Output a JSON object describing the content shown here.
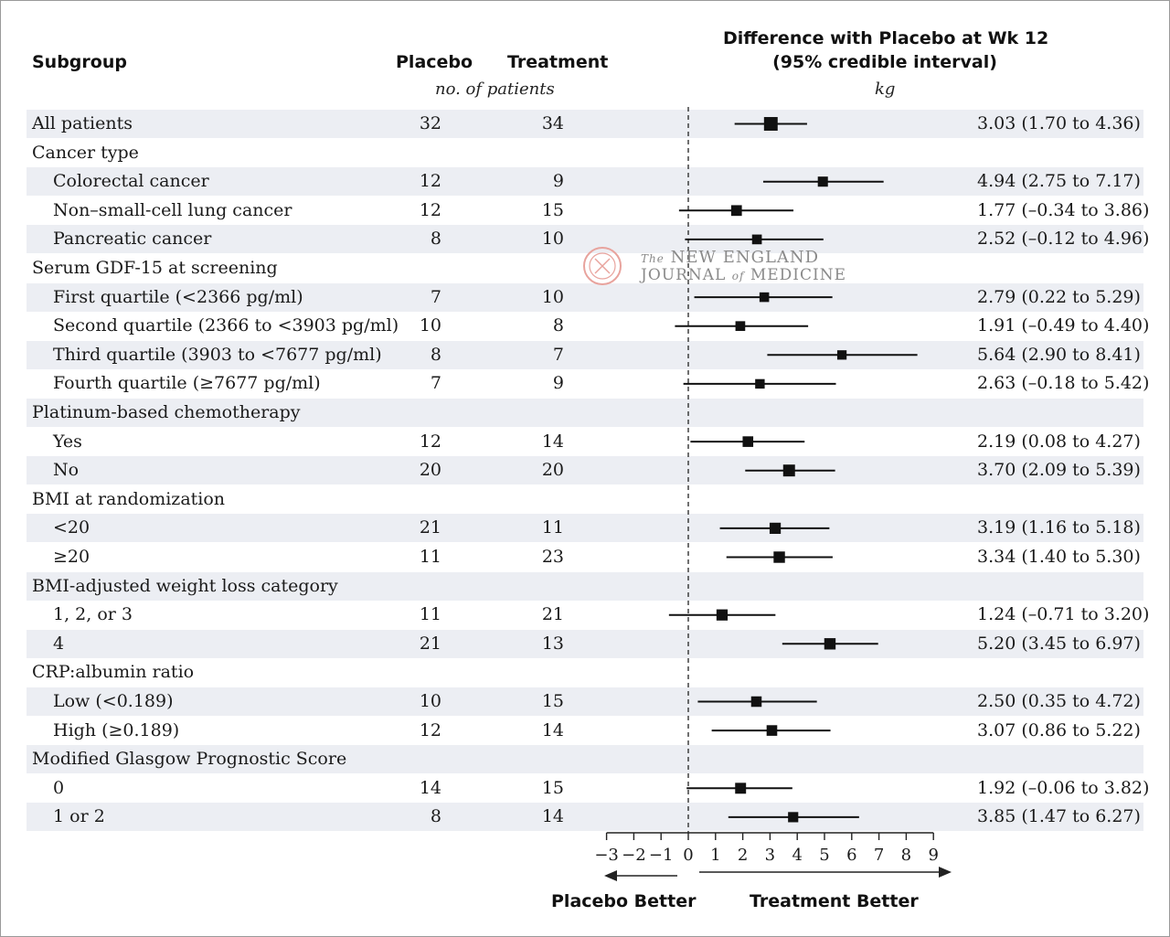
{
  "header": {
    "subgroup": "Subgroup",
    "placebo": "Placebo",
    "treatment": "Treatment",
    "counts_note": "no. of patients",
    "diff_line1": "Difference with Placebo at Wk 12",
    "diff_line2": "(95% credible interval)",
    "unit": "kg"
  },
  "logo": {
    "line1_small": "The",
    "line1": "NEW ENGLAND",
    "line2a": "JOURNAL",
    "line2_small": "of",
    "line2b": "MEDICINE"
  },
  "directions": {
    "left": "Placebo Better",
    "right": "Treatment Better"
  },
  "rows": [
    {
      "label": "All patients",
      "indent": false,
      "placebo": "32",
      "treatment": "34",
      "ci": "3.03 (1.70 to 4.36)"
    },
    {
      "label": "Cancer type",
      "indent": false,
      "placebo": "",
      "treatment": "",
      "ci": ""
    },
    {
      "label": "Colorectal cancer",
      "indent": true,
      "placebo": "12",
      "treatment": "9",
      "ci": "4.94 (2.75 to 7.17)"
    },
    {
      "label": "Non–small-cell lung cancer",
      "indent": true,
      "placebo": "12",
      "treatment": "15",
      "ci": "1.77 (–0.34 to 3.86)"
    },
    {
      "label": "Pancreatic cancer",
      "indent": true,
      "placebo": "8",
      "treatment": "10",
      "ci": "2.52 (–0.12 to 4.96)"
    },
    {
      "label": "Serum GDF-15 at screening",
      "indent": false,
      "placebo": "",
      "treatment": "",
      "ci": ""
    },
    {
      "label": "First quartile (<2366 pg/ml)",
      "indent": true,
      "placebo": "7",
      "treatment": "10",
      "ci": "2.79 (0.22 to 5.29)"
    },
    {
      "label": "Second quartile (2366 to <3903 pg/ml)",
      "indent": true,
      "placebo": "10",
      "treatment": "8",
      "ci": "1.91 (–0.49 to 4.40)"
    },
    {
      "label": "Third quartile (3903 to <7677 pg/ml)",
      "indent": true,
      "placebo": "8",
      "treatment": "7",
      "ci": "5.64 (2.90 to 8.41)"
    },
    {
      "label": "Fourth quartile (≥7677 pg/ml)",
      "indent": true,
      "placebo": "7",
      "treatment": "9",
      "ci": "2.63 (–0.18 to 5.42)"
    },
    {
      "label": "Platinum-based chemotherapy",
      "indent": false,
      "placebo": "",
      "treatment": "",
      "ci": ""
    },
    {
      "label": "Yes",
      "indent": true,
      "placebo": "12",
      "treatment": "14",
      "ci": "2.19 (0.08 to 4.27)"
    },
    {
      "label": "No",
      "indent": true,
      "placebo": "20",
      "treatment": "20",
      "ci": "3.70 (2.09 to 5.39)"
    },
    {
      "label": "BMI at randomization",
      "indent": false,
      "placebo": "",
      "treatment": "",
      "ci": ""
    },
    {
      "label": "<20",
      "indent": true,
      "placebo": "21",
      "treatment": "11",
      "ci": "3.19 (1.16 to 5.18)"
    },
    {
      "label": "≥20",
      "indent": true,
      "placebo": "11",
      "treatment": "23",
      "ci": "3.34 (1.40 to 5.30)"
    },
    {
      "label": "BMI-adjusted weight loss category",
      "indent": false,
      "placebo": "",
      "treatment": "",
      "ci": ""
    },
    {
      "label": "1, 2, or 3",
      "indent": true,
      "placebo": "11",
      "treatment": "21",
      "ci": "1.24 (–0.71 to 3.20)"
    },
    {
      "label": "4",
      "indent": true,
      "placebo": "21",
      "treatment": "13",
      "ci": "5.20 (3.45 to 6.97)"
    },
    {
      "label": "CRP:albumin ratio",
      "indent": false,
      "placebo": "",
      "treatment": "",
      "ci": ""
    },
    {
      "label": "Low (<0.189)",
      "indent": true,
      "placebo": "10",
      "treatment": "15",
      "ci": "2.50 (0.35 to 4.72)"
    },
    {
      "label": "High (≥0.189)",
      "indent": true,
      "placebo": "12",
      "treatment": "14",
      "ci": "3.07 (0.86 to 5.22)"
    },
    {
      "label": "Modified Glasgow Prognostic Score",
      "indent": false,
      "placebo": "",
      "treatment": "",
      "ci": ""
    },
    {
      "label": "0",
      "indent": true,
      "placebo": "14",
      "treatment": "15",
      "ci": "1.92 (–0.06 to 3.82)"
    },
    {
      "label": "1 or 2",
      "indent": true,
      "placebo": "8",
      "treatment": "14",
      "ci": "3.85 (1.47 to 6.27)"
    }
  ],
  "chart_data": {
    "type": "forest",
    "xlim": [
      -3,
      9
    ],
    "xticks": [
      "−3",
      "−2",
      "−1",
      "0",
      "1",
      "2",
      "3",
      "4",
      "5",
      "6",
      "7",
      "8",
      "9"
    ],
    "reference_line": 0,
    "points": [
      {
        "row": 0,
        "est": 3.03,
        "lo": 1.7,
        "hi": 4.36,
        "n": 66
      },
      {
        "row": 2,
        "est": 4.94,
        "lo": 2.75,
        "hi": 7.17,
        "n": 21
      },
      {
        "row": 3,
        "est": 1.77,
        "lo": -0.34,
        "hi": 3.86,
        "n": 27
      },
      {
        "row": 4,
        "est": 2.52,
        "lo": -0.12,
        "hi": 4.96,
        "n": 18
      },
      {
        "row": 6,
        "est": 2.79,
        "lo": 0.22,
        "hi": 5.29,
        "n": 17
      },
      {
        "row": 7,
        "est": 1.91,
        "lo": -0.49,
        "hi": 4.4,
        "n": 18
      },
      {
        "row": 8,
        "est": 5.64,
        "lo": 2.9,
        "hi": 8.41,
        "n": 15
      },
      {
        "row": 9,
        "est": 2.63,
        "lo": -0.18,
        "hi": 5.42,
        "n": 16
      },
      {
        "row": 11,
        "est": 2.19,
        "lo": 0.08,
        "hi": 4.27,
        "n": 26
      },
      {
        "row": 12,
        "est": 3.7,
        "lo": 2.09,
        "hi": 5.39,
        "n": 40
      },
      {
        "row": 14,
        "est": 3.19,
        "lo": 1.16,
        "hi": 5.18,
        "n": 32
      },
      {
        "row": 15,
        "est": 3.34,
        "lo": 1.4,
        "hi": 5.3,
        "n": 34
      },
      {
        "row": 17,
        "est": 1.24,
        "lo": -0.71,
        "hi": 3.2,
        "n": 32
      },
      {
        "row": 18,
        "est": 5.2,
        "lo": 3.45,
        "hi": 6.97,
        "n": 34
      },
      {
        "row": 20,
        "est": 2.5,
        "lo": 0.35,
        "hi": 4.72,
        "n": 25
      },
      {
        "row": 21,
        "est": 3.07,
        "lo": 0.86,
        "hi": 5.22,
        "n": 26
      },
      {
        "row": 23,
        "est": 1.92,
        "lo": -0.06,
        "hi": 3.82,
        "n": 29
      },
      {
        "row": 24,
        "est": 3.85,
        "lo": 1.47,
        "hi": 6.27,
        "n": 22
      }
    ]
  }
}
